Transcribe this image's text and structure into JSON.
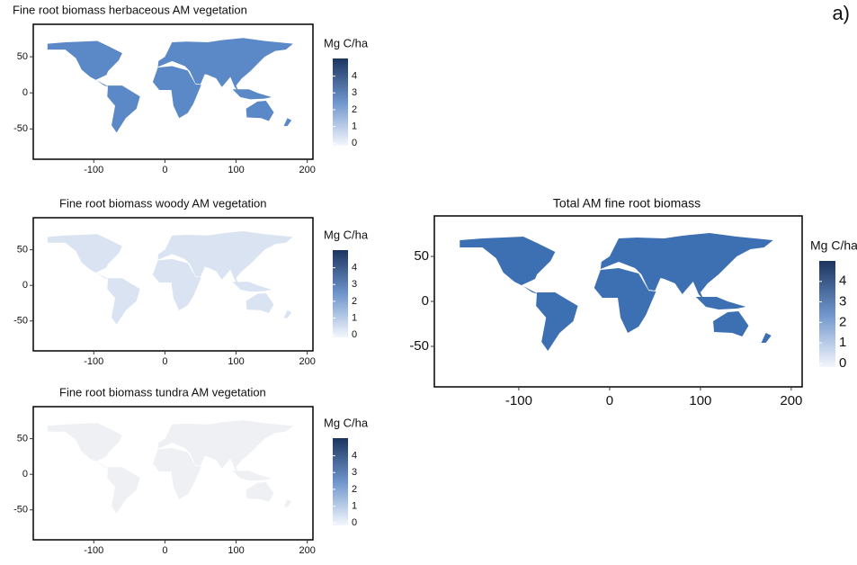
{
  "panel_label": "a)",
  "chart_data": [
    {
      "type": "map",
      "title": "Fine root biomass herbaceous AM vegetation",
      "xlim": [
        -185,
        208
      ],
      "ylim": [
        -92,
        95
      ],
      "xticks": [
        -100,
        0,
        100,
        200
      ],
      "yticks": [
        -50,
        0,
        50
      ],
      "colorbar": {
        "title": "Mg C/ha",
        "lim": [
          -0.15,
          5.05
        ],
        "ticks": [
          0,
          1,
          2,
          3,
          4
        ]
      }
    },
    {
      "type": "map",
      "title": "Fine root biomass woody AM vegetation",
      "xlim": [
        -185,
        208
      ],
      "ylim": [
        -92,
        95
      ],
      "xticks": [
        -100,
        0,
        100,
        200
      ],
      "yticks": [
        -50,
        0,
        50
      ],
      "colorbar": {
        "title": "Mg C/ha",
        "lim": [
          -0.15,
          5.05
        ],
        "ticks": [
          0,
          1,
          2,
          3,
          4
        ]
      }
    },
    {
      "type": "map",
      "title": "Fine root biomass tundra AM vegetation",
      "xlim": [
        -185,
        208
      ],
      "ylim": [
        -92,
        95
      ],
      "xticks": [
        -100,
        0,
        100,
        200
      ],
      "yticks": [
        -50,
        0,
        50
      ],
      "colorbar": {
        "title": "Mg C/ha",
        "lim": [
          -0.15,
          5.05
        ],
        "ticks": [
          0,
          1,
          2,
          3,
          4
        ]
      }
    },
    {
      "type": "map",
      "title": "Total AM fine root biomass",
      "xlim": [
        -193,
        212
      ],
      "ylim": [
        -95,
        95
      ],
      "xticks": [
        -100,
        0,
        100,
        200
      ],
      "yticks": [
        -50,
        0,
        50
      ],
      "colorbar": {
        "title": "Mg C/ha",
        "lim": [
          -0.18,
          5.0
        ],
        "ticks": [
          0,
          1,
          2,
          3,
          4
        ]
      }
    }
  ]
}
